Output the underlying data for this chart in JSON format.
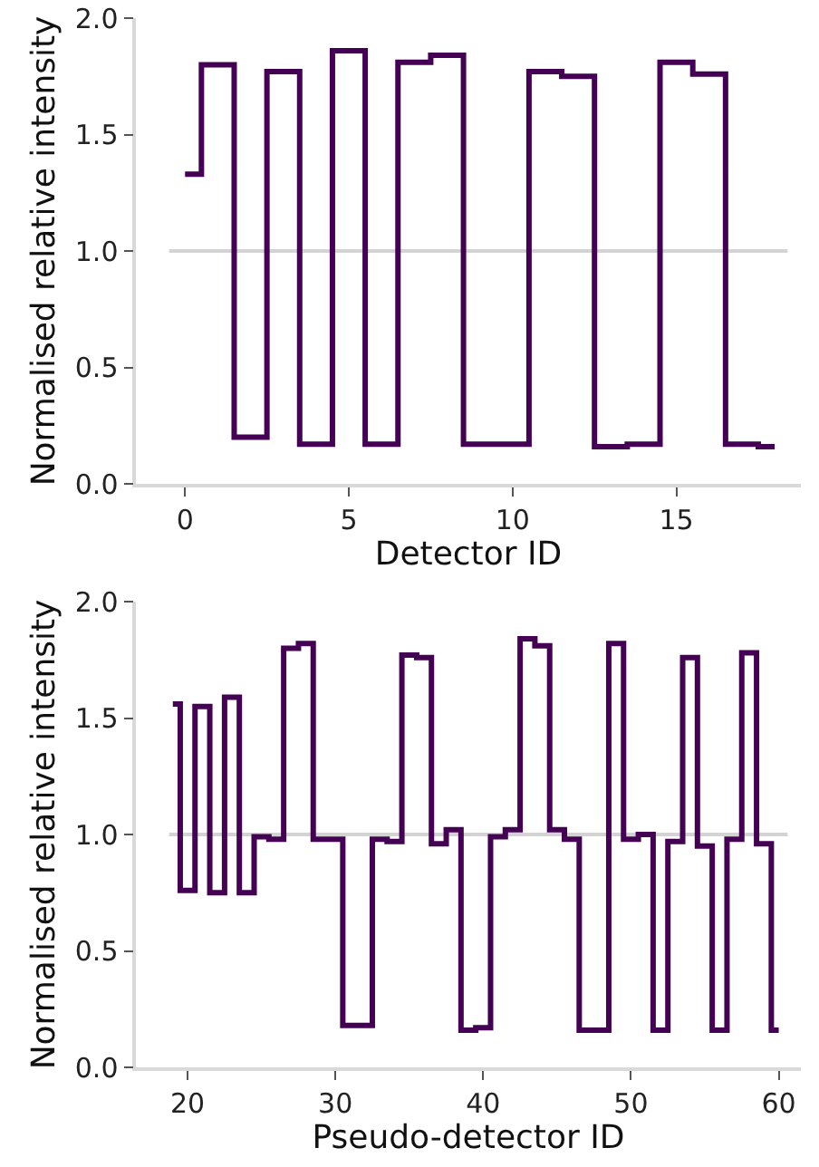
{
  "chart_data": [
    {
      "type": "step",
      "xlabel": "Detector ID",
      "ylabel": "Normalised relative intensity",
      "x": [
        0,
        1,
        2,
        3,
        4,
        5,
        6,
        7,
        8,
        9,
        10,
        11,
        12,
        13,
        14,
        15,
        16,
        17,
        18
      ],
      "series": [
        {
          "color": "#440154",
          "values": [
            1.33,
            1.8,
            0.2,
            1.77,
            0.17,
            1.86,
            0.17,
            1.81,
            1.84,
            0.17,
            0.17,
            1.77,
            1.75,
            0.16,
            0.17,
            1.81,
            1.76,
            0.17,
            0.16
          ]
        }
      ],
      "xlim": [
        -1.5,
        18.8
      ],
      "xticks": [
        0,
        5,
        10,
        15
      ],
      "ylim": [
        0,
        2
      ],
      "yticks": [
        {
          "value": 0,
          "label": "0.0"
        },
        {
          "value": 0.5,
          "label": "0.5"
        },
        {
          "value": 1,
          "label": "1.0"
        },
        {
          "value": 1.5,
          "label": "1.5"
        },
        {
          "value": 2,
          "label": "2.0"
        }
      ],
      "ref_lines": [
        {
          "axis": "y",
          "value": 1,
          "color": "#d3d3d3"
        }
      ],
      "grid": false
    },
    {
      "type": "step",
      "xlabel": "Pseudo-detector ID",
      "ylabel": "Normalised relative intensity",
      "x": [
        19,
        20,
        21,
        22,
        23,
        24,
        25,
        26,
        27,
        28,
        29,
        30,
        31,
        32,
        33,
        34,
        35,
        36,
        37,
        38,
        39,
        40,
        41,
        42,
        43,
        44,
        45,
        46,
        47,
        48,
        49,
        50,
        51,
        52,
        53,
        54,
        55,
        56,
        57,
        58,
        59,
        60
      ],
      "series": [
        {
          "color": "#440154",
          "values": [
            1.56,
            0.76,
            1.55,
            0.75,
            1.59,
            0.75,
            0.99,
            0.98,
            1.8,
            1.82,
            0.98,
            0.98,
            0.18,
            0.18,
            0.98,
            0.97,
            1.77,
            1.76,
            0.96,
            1.02,
            0.16,
            0.17,
            0.99,
            1.02,
            1.84,
            1.81,
            1.02,
            0.98,
            0.16,
            0.16,
            1.82,
            0.98,
            1.0,
            0.16,
            0.97,
            1.76,
            0.95,
            0.16,
            0.98,
            1.78,
            0.96,
            0.16
          ]
        }
      ],
      "xlim": [
        16.5,
        61.5
      ],
      "xticks": [
        20,
        30,
        40,
        50,
        60
      ],
      "ylim": [
        0,
        2
      ],
      "yticks": [
        {
          "value": 0,
          "label": "0.0"
        },
        {
          "value": 0.5,
          "label": "0.5"
        },
        {
          "value": 1,
          "label": "1.0"
        },
        {
          "value": 1.5,
          "label": "1.5"
        },
        {
          "value": 2,
          "label": "2.0"
        }
      ],
      "ref_lines": [
        {
          "axis": "y",
          "value": 1,
          "color": "#d3d3d3"
        }
      ],
      "grid": false
    }
  ]
}
